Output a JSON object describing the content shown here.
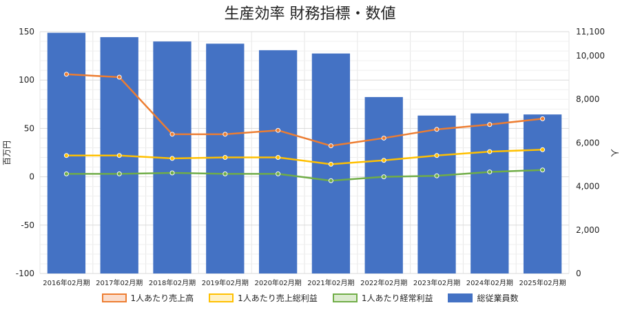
{
  "chart_data": {
    "type": "bar",
    "title": "生産効率 財務指標・数値",
    "categories": [
      "2016年02月期",
      "2017年02月期",
      "2018年02月期",
      "2019年02月期",
      "2020年02月期",
      "2021年02月期",
      "2022年02月期",
      "2023年02月期",
      "2024年02月期",
      "2025年02月期"
    ],
    "left_axis": {
      "label": "百万円",
      "ylim": [
        -100,
        150
      ],
      "ticks": [
        "150",
        "100",
        "50",
        "0",
        "-50",
        "-100"
      ]
    },
    "right_axis": {
      "label": "人",
      "ylim": [
        0,
        11100
      ],
      "ticks": [
        "11,100",
        "10,000",
        "8,000",
        "6,000",
        "4,000",
        "2,000",
        "0"
      ]
    },
    "series": [
      {
        "name": "1人あたり売上高",
        "type": "line",
        "axis": "left",
        "color": "#ED7D31",
        "fill": "#FBDDCC",
        "values": [
          106,
          103,
          44,
          44,
          48,
          32,
          40,
          49,
          54,
          60
        ]
      },
      {
        "name": "1人あたり売上総利益",
        "type": "line",
        "axis": "left",
        "color": "#FFC000",
        "fill": "#FFF1C4",
        "values": [
          22,
          22,
          19,
          20,
          20,
          13,
          17,
          22,
          26,
          28
        ]
      },
      {
        "name": "1人あたり経常利益",
        "type": "line",
        "axis": "left",
        "color": "#70AD47",
        "fill": "#DCEBCF",
        "values": [
          3,
          3,
          4,
          3,
          3,
          -4,
          0,
          1,
          5,
          7
        ]
      },
      {
        "name": "総従業員数",
        "type": "bar",
        "axis": "right",
        "color": "#4472C4",
        "values": [
          11050,
          10850,
          10650,
          10550,
          10250,
          10100,
          8100,
          7250,
          7350,
          7300
        ]
      }
    ],
    "grid": true,
    "legend_position": "bottom"
  }
}
